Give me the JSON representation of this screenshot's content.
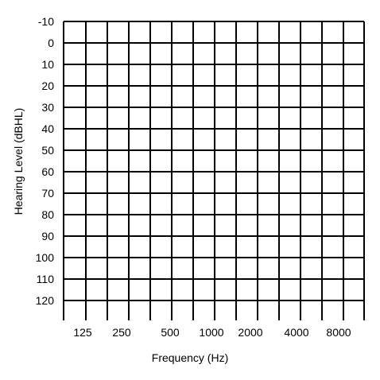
{
  "chart_data": {
    "type": "line",
    "title": "",
    "xlabel": "Frequency (Hz)",
    "ylabel": "Hearing Level (dBHL)",
    "x_tick_labels": [
      "125",
      "250",
      "500",
      "1000",
      "2000",
      "4000",
      "8000"
    ],
    "y_tick_labels": [
      "-10",
      "0",
      "10",
      "20",
      "30",
      "40",
      "50",
      "60",
      "70",
      "80",
      "90",
      "100",
      "110",
      "120"
    ],
    "y_values": [
      -10,
      0,
      10,
      20,
      30,
      40,
      50,
      60,
      70,
      80,
      90,
      100,
      110,
      120
    ],
    "ylim": [
      -10,
      120
    ],
    "y_inverted": true,
    "grid": true,
    "series": [],
    "colors": {
      "grid": "#000000",
      "text": "#000000",
      "background": "#ffffff"
    }
  }
}
